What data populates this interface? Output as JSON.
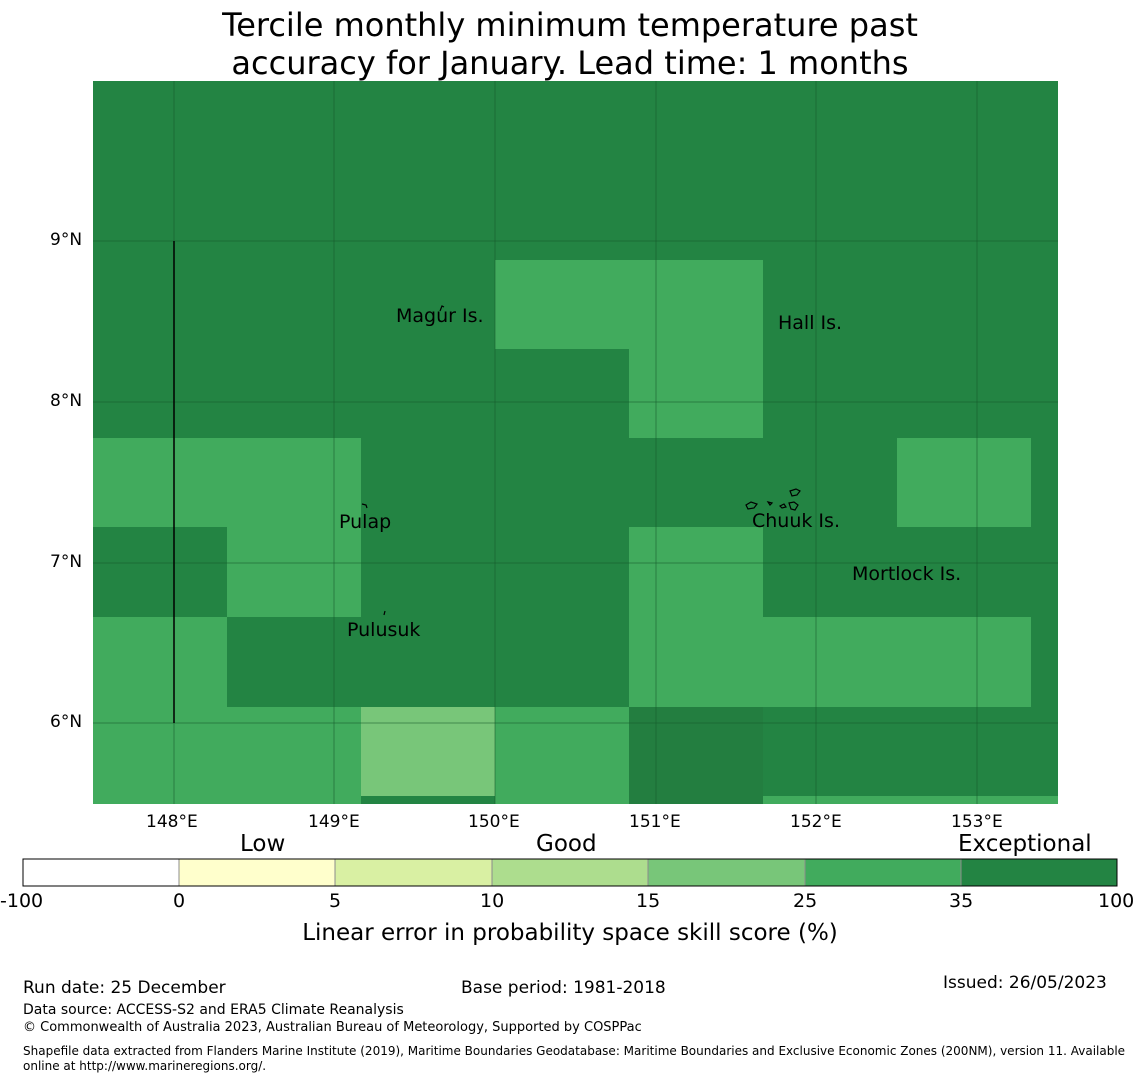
{
  "title": {
    "line1": "Tercile monthly minimum temperature past",
    "line2": "accuracy for January. Lead time: 1 months"
  },
  "map": {
    "latitude_labels": [
      "9°N",
      "8°N",
      "7°N",
      "6°N"
    ],
    "longitude_labels": [
      "148°E",
      "149°E",
      "150°E",
      "151°E",
      "152°E",
      "153°E"
    ],
    "places": [
      "Magur Is.",
      "Hall Is.",
      "Pulap",
      "Chuuk Is.",
      "Mortlock Is.",
      "Pulusuk"
    ],
    "colors": {
      "exceptional_35_100": "#238443",
      "cat_25_35": "#41ab5d",
      "cat_15_25": "#78c679"
    }
  },
  "colorbar": {
    "categories": [
      "Low",
      "Good",
      "Exceptional"
    ],
    "ticks": [
      "-100",
      "0",
      "5",
      "10",
      "15",
      "25",
      "35",
      "100"
    ],
    "colors": [
      "#ffffff",
      "#ffffcc",
      "#d9f0a3",
      "#addd8e",
      "#78c679",
      "#41ab5d",
      "#238443"
    ],
    "label": "Linear error in probability space skill score (%)"
  },
  "footer": {
    "run_date": "Run date: 25 December",
    "base_period": "Base period: 1981-2018",
    "issued": "Issued: 26/05/2023",
    "data_source": "Data source: ACCESS-S2 and ERA5 Climate Reanalysis",
    "copyright": "© Commonwealth of Australia 2023, Australian Bureau of Meteorology, Supported by COSPPac",
    "shapefile_line1": "Shapefile data extracted from Flanders Marine Institute (2019), Maritime Boundaries Geodatabase: Maritime Boundaries and Exclusive Economic Zones (200NM), version 11. Available",
    "shapefile_line2": "online at http://www.marineregions.org/."
  }
}
